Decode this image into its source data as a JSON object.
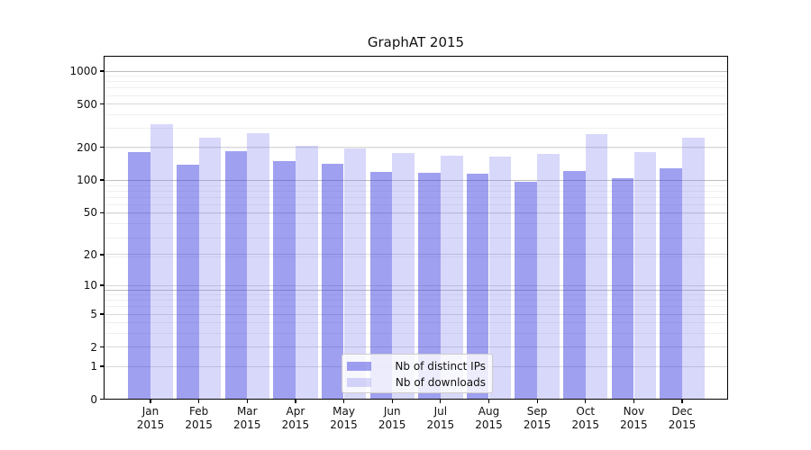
{
  "chart_data": {
    "type": "bar",
    "title": "GraphAT 2015",
    "categories": [
      "Jan 2015",
      "Feb 2015",
      "Mar 2015",
      "Apr 2015",
      "May 2015",
      "Jun 2015",
      "Jul 2015",
      "Aug 2015",
      "Sep 2015",
      "Oct 2015",
      "Nov 2015",
      "Dec 2015"
    ],
    "series": [
      {
        "name": "Nb of distinct IPs",
        "color": "#4141E1",
        "alpha": 0.5,
        "values": [
          181,
          138,
          183,
          151,
          141,
          119,
          117,
          115,
          96,
          121,
          104,
          128
        ]
      },
      {
        "name": "Nb of downloads",
        "color": "#7D7DEE",
        "alpha": 0.3,
        "values": [
          326,
          246,
          271,
          207,
          194,
          176,
          167,
          164,
          174,
          265,
          181,
          245
        ]
      }
    ],
    "y_ticks": [
      0,
      1,
      2,
      5,
      10,
      20,
      50,
      100,
      200,
      500,
      1000
    ],
    "y_scale": "log1p",
    "ylim": [
      0,
      1380
    ],
    "xlabel": "",
    "ylabel": "",
    "grid": true,
    "legend_position": "inside-bottom-center",
    "grid_colors": {
      "decade": "#bdbdbd",
      "major": "#d9d9d9",
      "minor": "#efefef"
    }
  }
}
